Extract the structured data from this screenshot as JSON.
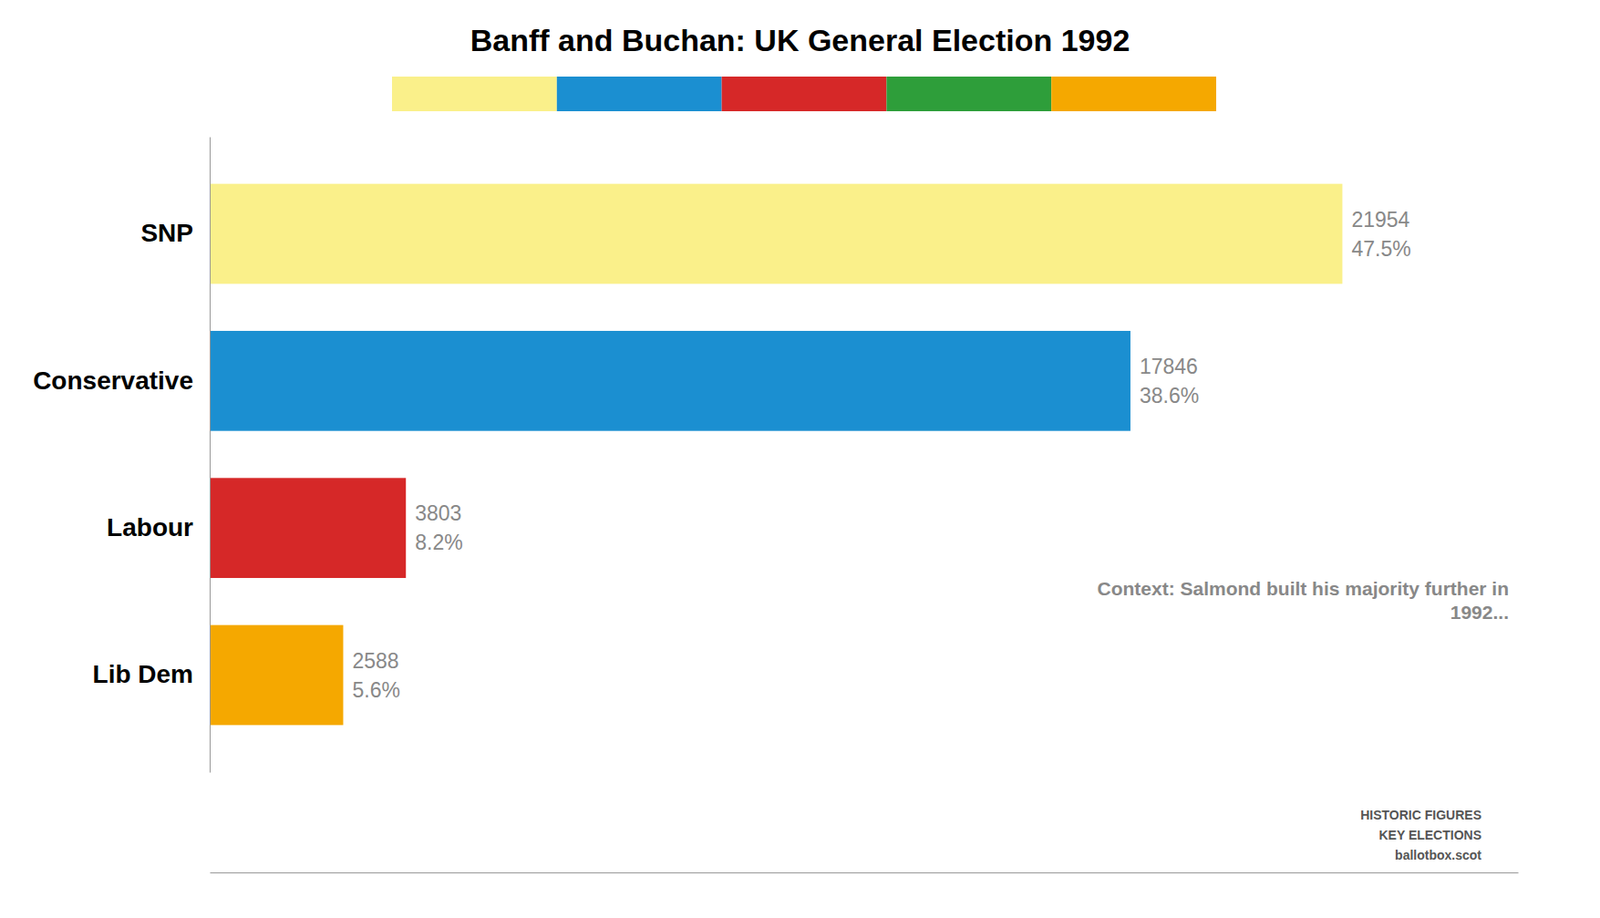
{
  "chart_data": {
    "type": "bar",
    "orientation": "horizontal",
    "title": "Banff and Buchan: UK General Election 1992",
    "categories": [
      "SNP",
      "Conservative",
      "Labour",
      "Lib Dem"
    ],
    "values": [
      21954,
      17846,
      3803,
      2588
    ],
    "colors": [
      "#FAF08A",
      "#1B8FD1",
      "#D62828",
      "#F5A800"
    ],
    "data_labels": true,
    "percentages": [
      {
        "value": 47.5,
        "label": "47.5%"
      },
      {
        "value": 38.6,
        "label": "38.6%"
      },
      {
        "value": 8.2,
        "label": "8.2%"
      },
      {
        "value": 5.6,
        "label": "5.6%"
      }
    ],
    "xlim": [
      0,
      25356.87
    ],
    "tick_labels": "y",
    "grid": false,
    "annotations": [
      "Context: Salmond built his majority further in\n1992...",
      "HISTORIC FIGURES\nKEY ELECTIONS\nballotbox.scot"
    ],
    "stripe_colors": [
      "#FAF08A",
      "#1B8FD1",
      "#D62828",
      "#2E9E3A",
      "#F5A800"
    ]
  }
}
